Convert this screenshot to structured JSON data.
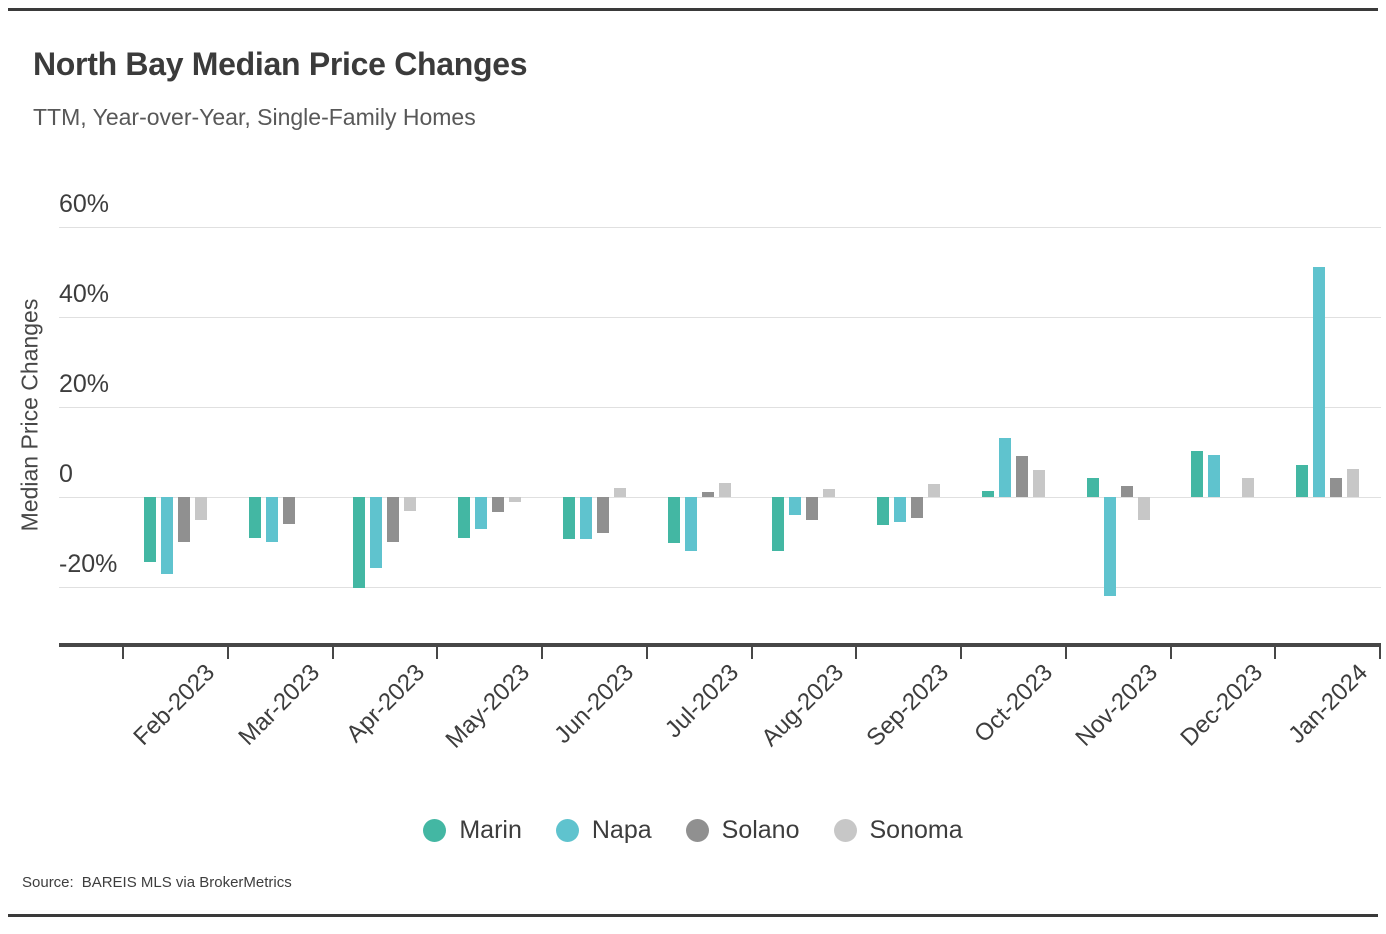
{
  "header": {
    "title": "North Bay Median Price Changes",
    "subtitle": "TTM, Year-over-Year, Single-Family Homes"
  },
  "source": {
    "label": "Source:",
    "text": "BAREIS MLS via BrokerMetrics"
  },
  "chart_data": {
    "type": "bar",
    "title": "North Bay Median Price Changes",
    "subtitle": "TTM, Year-over-Year, Single-Family Homes",
    "xlabel": "",
    "ylabel": "Median Price Changes",
    "unit": "%",
    "grid": "horizontal",
    "legend_position": "bottom",
    "ylim": [
      -33,
      60
    ],
    "yticks": [
      60,
      40,
      20,
      0,
      -20
    ],
    "ytick_labels": [
      "60%",
      "40%",
      "20%",
      "0",
      "-20%"
    ],
    "categories": [
      "Feb-2023",
      "Mar-2023",
      "Apr-2023",
      "May-2023",
      "Jun-2023",
      "Jul-2023",
      "Aug-2023",
      "Sep-2023",
      "Oct-2023",
      "Nov-2023",
      "Dec-2023",
      "Jan-2024"
    ],
    "series": [
      {
        "name": "Marin",
        "color": "#43B7A3",
        "values": [
          -14.5,
          -9,
          -20.3,
          -9.2,
          -9.3,
          -10.3,
          -12.1,
          -6.3,
          1.4,
          4.3,
          10.3,
          7.1
        ]
      },
      {
        "name": "Napa",
        "color": "#5FC3CE",
        "values": [
          -17.2,
          -10,
          -15.8,
          -7.2,
          -9.3,
          -11.9,
          -4.1,
          -5.6,
          13.2,
          -22.1,
          9.3,
          51.2
        ]
      },
      {
        "name": "Solano",
        "color": "#909090",
        "values": [
          -10,
          -6,
          -10,
          -3.3,
          -8.1,
          1.1,
          -5.2,
          -4.6,
          9.2,
          2.5,
          0,
          4.2
        ]
      },
      {
        "name": "Sonoma",
        "color": "#C7C7C7",
        "values": [
          -5,
          0,
          -3.2,
          -1.2,
          2.1,
          3.1,
          1.8,
          3,
          6.1,
          -5,
          4.3,
          6.2
        ]
      }
    ]
  }
}
